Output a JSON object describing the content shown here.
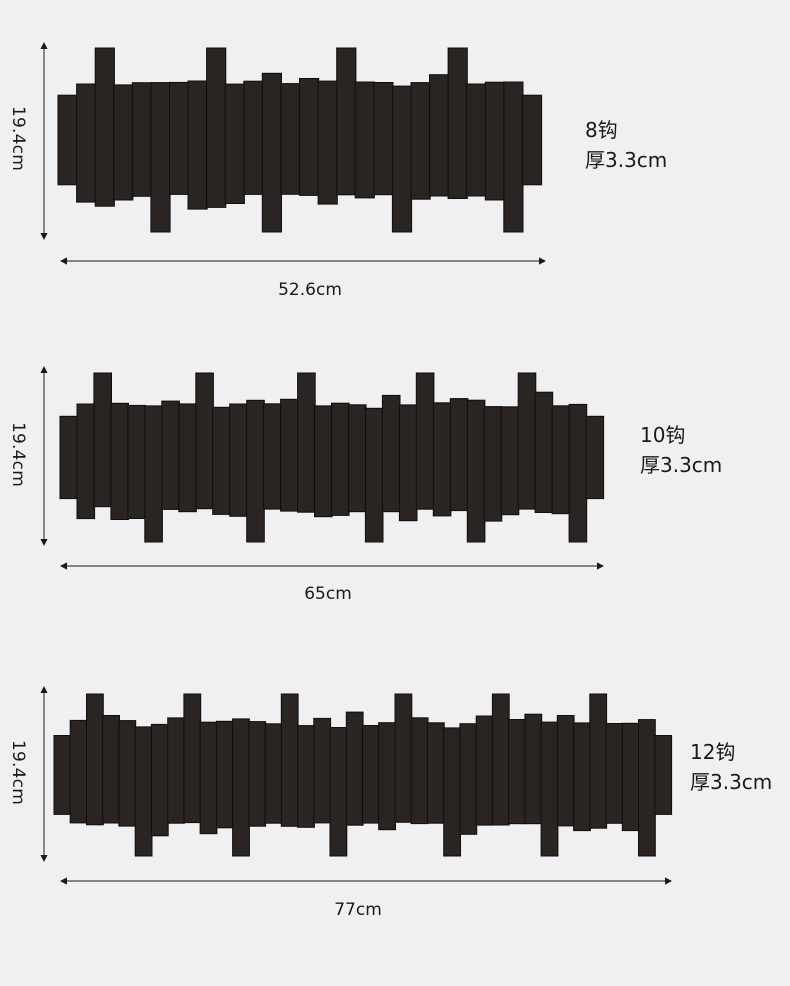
{
  "colors": {
    "background": "#f0f0f2",
    "slat": "#2a2523",
    "slat_edge": "#0f0d0c",
    "dimension_line": "#1a1a1a"
  },
  "variants": [
    {
      "height_label": "19.4cm",
      "width_label": "52.6cm",
      "hooks_label": "8钩",
      "thickness_label": "厚3.3cm",
      "hook_count": 8
    },
    {
      "height_label": "19.4cm",
      "width_label": "65cm",
      "hooks_label": "10钩",
      "thickness_label": "厚3.3cm",
      "hook_count": 10
    },
    {
      "height_label": "19.4cm",
      "width_label": "77cm",
      "hooks_label": "12钩",
      "thickness_label": "厚3.3cm",
      "hook_count": 12
    }
  ]
}
